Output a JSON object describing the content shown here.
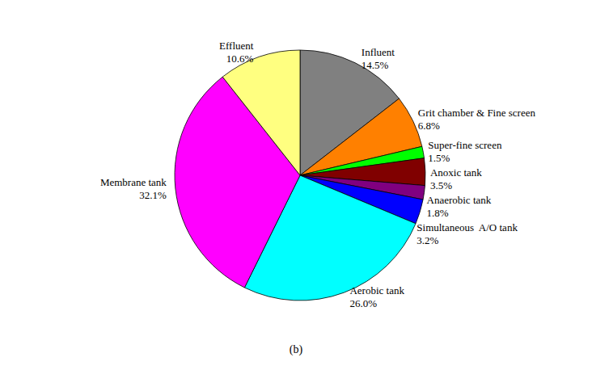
{
  "chart_data": {
    "type": "pie",
    "title": "(b)",
    "categories": [
      "Influent",
      "Grit chamber & Fine screen",
      "Super-fine screen",
      "Anoxic tank",
      "Anaerobic tank",
      "Simultaneous  A/O tank",
      "Aerobic tank",
      "Membrane tank",
      "Effluent"
    ],
    "values": [
      14.5,
      6.8,
      1.5,
      3.5,
      1.8,
      3.2,
      26.0,
      32.1,
      10.6
    ],
    "value_labels": [
      "14.5%",
      "6.8%",
      "1.5%",
      "3.5%",
      "1.8%",
      "3.2%",
      "26.0%",
      "32.1%",
      "10.6%"
    ],
    "colors": [
      "#808080",
      "#ff8000",
      "#00ff00",
      "#800000",
      "#800080",
      "#0000ff",
      "#00ffff",
      "#ff00ff",
      "#ffff80"
    ],
    "data_labels": true
  }
}
